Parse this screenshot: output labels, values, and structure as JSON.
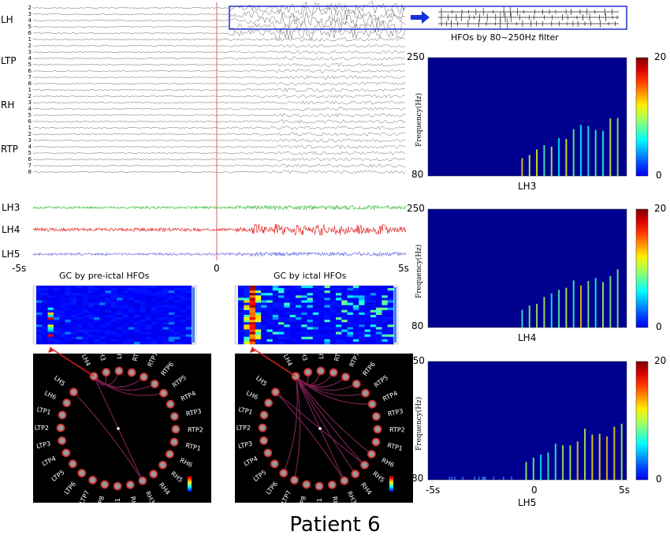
{
  "eeg": {
    "groups": [
      {
        "name": "LH",
        "channels": [
          "2",
          "3",
          "4",
          "5",
          "6"
        ]
      },
      {
        "name": "LTP",
        "channels": [
          "1",
          "2",
          "3",
          "4",
          "5",
          "6",
          "7",
          "8"
        ]
      },
      {
        "name": "RH",
        "channels": [
          "1",
          "2",
          "3",
          "4",
          "5",
          "6"
        ]
      },
      {
        "name": "RTP",
        "channels": [
          "1",
          "2",
          "3",
          "4",
          "5",
          "6",
          "7",
          "8"
        ]
      }
    ],
    "filtered_channels": [
      {
        "name": "LH3",
        "color": "#1fb51f"
      },
      {
        "name": "LH4",
        "color": "#e01010"
      },
      {
        "name": "LH5",
        "color": "#5a5ae0"
      }
    ],
    "time_ticks": [
      "-5s",
      "0",
      "5s"
    ],
    "onset_color": "#e06060"
  },
  "inset": {
    "caption": "HFOs by 80~250Hz filter",
    "box_color": "#2030d0"
  },
  "spectrograms": {
    "ylabel": "Frequency(Hz)",
    "ymax": "250",
    "ymin": "80",
    "cmax": "20",
    "cmin": "0",
    "xticks": [
      "-5s",
      "0",
      "5s"
    ],
    "panels": [
      {
        "channel": "LH3"
      },
      {
        "channel": "LH4"
      },
      {
        "channel": "LH5"
      }
    ]
  },
  "gc": {
    "preictal_title": "GC by pre-ictal HFOs",
    "ictal_title": "GC by ictal HFOs"
  },
  "circle": {
    "nodes": [
      "LH4",
      "LH3",
      "LH2",
      "RTP8",
      "RTP7",
      "RTP6",
      "RTP5",
      "RTP4",
      "RTP3",
      "RTP2",
      "RTP1",
      "RH6",
      "RH5",
      "RH4",
      "RH3",
      "RH2",
      "RH1",
      "LTP8",
      "LTP7",
      "LTP6",
      "LTP5",
      "LTP4",
      "LTP3",
      "LTP2",
      "LTP1",
      "LH6",
      "LH5"
    ],
    "preictal_edges": [
      [
        "LH4",
        "LH3"
      ],
      [
        "LH4",
        "LH2"
      ],
      [
        "LH4",
        "RTP7"
      ],
      [
        "LH4",
        "RTP6"
      ],
      [
        "LH4",
        "RTP5"
      ],
      [
        "LH4",
        "RH3"
      ],
      [
        "LH5",
        "RH3"
      ]
    ],
    "ictal_edges": [
      [
        "LH4",
        "LH3"
      ],
      [
        "LH4",
        "LH2"
      ],
      [
        "LH4",
        "RTP8"
      ],
      [
        "LH4",
        "RTP7"
      ],
      [
        "LH4",
        "RTP6"
      ],
      [
        "LH4",
        "RTP5"
      ],
      [
        "LH4",
        "RTP4"
      ],
      [
        "LH4",
        "RH6"
      ],
      [
        "LH4",
        "RH5"
      ],
      [
        "LH4",
        "RH4"
      ],
      [
        "LH4",
        "RH3"
      ],
      [
        "LH4",
        "LTP7"
      ],
      [
        "LH4",
        "LTP6"
      ],
      [
        "LH5",
        "RH5"
      ],
      [
        "LH5",
        "RH3"
      ]
    ]
  },
  "footer": {
    "title": "Patient 6"
  }
}
